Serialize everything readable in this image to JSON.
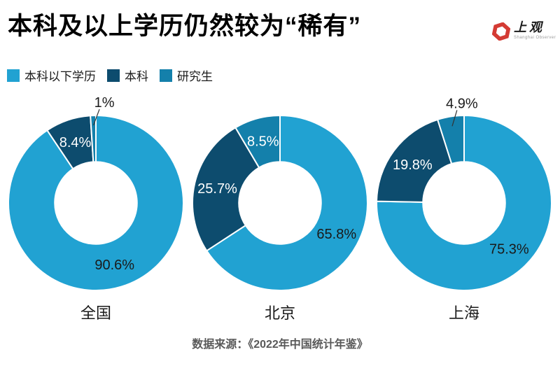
{
  "header": {
    "title": "本科及以上学历仍然较为“稀有”",
    "logo": {
      "name": "上观",
      "subtitle": "Shanghai Observer",
      "color": "#d43b34"
    }
  },
  "chart_data": {
    "type": "pie",
    "variant": "donut",
    "unit": "%",
    "legend_position": "top-left",
    "start_angle_deg": 0,
    "direction": "clockwise",
    "inner_radius_ratio": 0.47,
    "outside_label_threshold_pct": 6,
    "series": [
      {
        "name": "本科以下学历",
        "color": "#21a2d2",
        "label_color": "#1a1a1a"
      },
      {
        "name": "本科",
        "color": "#0d4c6e",
        "label_color": "#ffffff"
      },
      {
        "name": "研究生",
        "color": "#1480ab",
        "label_color": "#ffffff"
      }
    ],
    "charts": [
      {
        "category": "全国",
        "values": [
          90.6,
          8.4,
          1.0
        ],
        "value_labels": [
          "90.6%",
          "8.4%",
          "1%"
        ]
      },
      {
        "category": "北京",
        "values": [
          65.8,
          25.7,
          8.5
        ],
        "value_labels": [
          "65.8%",
          "25.7%",
          "8.5%"
        ]
      },
      {
        "category": "上海",
        "values": [
          75.3,
          19.8,
          4.9
        ],
        "value_labels": [
          "75.3%",
          "19.8%",
          "4.9%"
        ]
      }
    ]
  },
  "source": "数据来源：《2022年中国统计年鉴》"
}
